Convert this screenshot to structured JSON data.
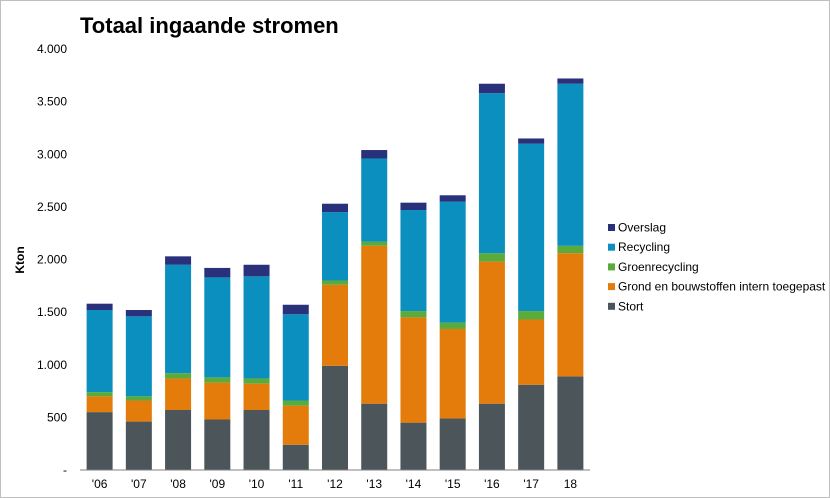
{
  "chart_data": {
    "type": "bar",
    "stacked": true,
    "title": "Totaal ingaande stromen",
    "ylabel": "Kton",
    "xlabel": "",
    "ylim": [
      0,
      4000
    ],
    "yticks": [
      0,
      500,
      1000,
      1500,
      2000,
      2500,
      3000,
      3500,
      4000
    ],
    "ytick_labels": [
      "-",
      "500",
      "1.000",
      "1.500",
      "2.000",
      "2.500",
      "3.000",
      "3.500",
      "4.000"
    ],
    "categories": [
      "'06",
      "'07",
      "'08",
      "'09",
      "'10",
      "'11",
      "'12",
      "'13",
      "'14",
      "'15",
      "'16",
      "'17",
      "18"
    ],
    "grid": false,
    "legend_position": "right",
    "series": [
      {
        "name": "Stort",
        "color": "#4b555a",
        "values": [
          550,
          460,
          570,
          480,
          570,
          240,
          990,
          630,
          450,
          490,
          630,
          810,
          890
        ]
      },
      {
        "name": "Grond en bouwstoffen intern toegepast",
        "color": "#e47c0b",
        "values": [
          150,
          200,
          300,
          350,
          250,
          370,
          770,
          1500,
          1000,
          850,
          1350,
          620,
          1170
        ]
      },
      {
        "name": "Groenrecycling",
        "color": "#5bab3c",
        "values": [
          40,
          40,
          50,
          50,
          50,
          50,
          40,
          40,
          60,
          60,
          80,
          80,
          70
        ]
      },
      {
        "name": "Recycling",
        "color": "#0a8fbf",
        "values": [
          780,
          760,
          1030,
          950,
          970,
          820,
          650,
          790,
          960,
          1150,
          1520,
          1590,
          1540
        ]
      },
      {
        "name": "Overslag",
        "color": "#283179",
        "values": [
          60,
          60,
          80,
          90,
          110,
          90,
          80,
          80,
          70,
          60,
          90,
          50,
          50
        ]
      }
    ]
  }
}
